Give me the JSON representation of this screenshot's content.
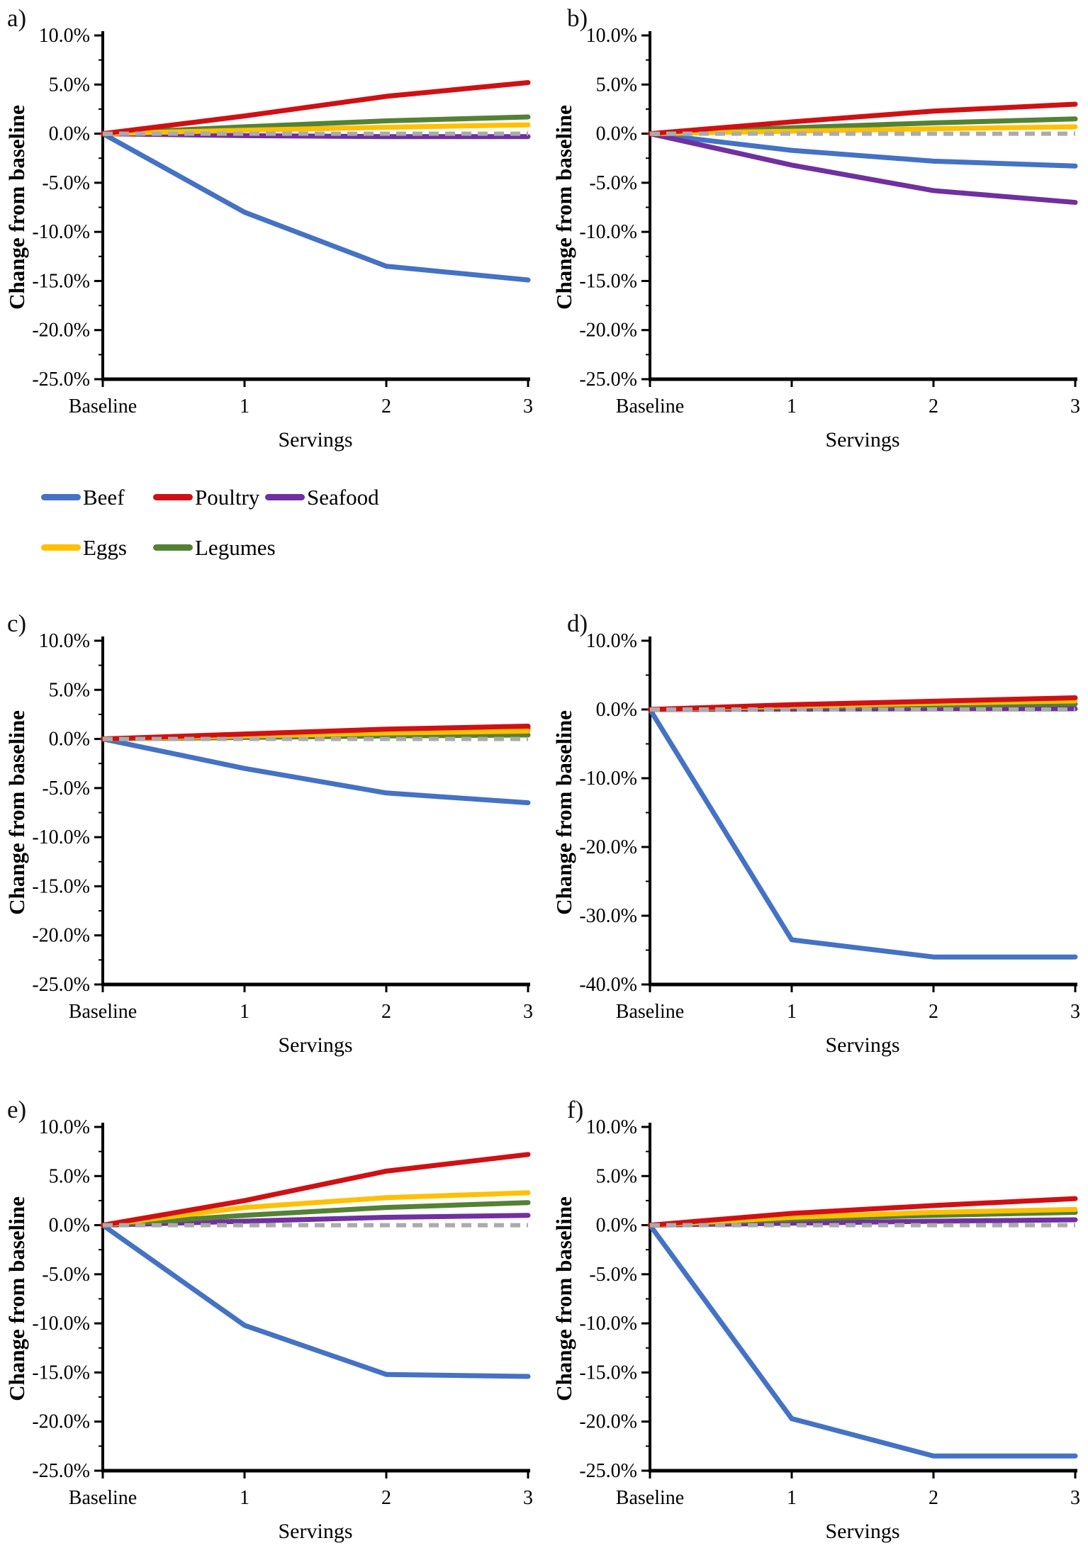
{
  "figure": {
    "description": "Six line-chart panels labeled a) to f) showing percent change from baseline by number of servings",
    "panel_letters": [
      "a)",
      "b)",
      "c)",
      "d)",
      "e)",
      "f)"
    ]
  },
  "palette": {
    "beef": "#4472C4",
    "poultry": "#D01013",
    "seafood": "#7030A0",
    "eggs": "#FFC000",
    "legumes": "#548235",
    "zero_line": "#ABABAB",
    "axis": "#000000"
  },
  "legend": {
    "rows": [
      [
        {
          "label": "Beef",
          "color": "#4472C4"
        },
        {
          "label": "Poultry",
          "color": "#D01013"
        },
        {
          "label": "Seafood",
          "color": "#7030A0"
        }
      ],
      [
        {
          "label": "Eggs",
          "color": "#FFC000"
        },
        {
          "label": "Legumes",
          "color": "#548235"
        }
      ]
    ]
  },
  "chart_data": [
    {
      "id": "a",
      "panel_label": "a)",
      "type": "line",
      "x_categories": [
        "Baseline",
        "1",
        "2",
        "3"
      ],
      "xlabel": "Servings",
      "ylabel": "Change from baseline",
      "ylim": [
        -25,
        10
      ],
      "ytick_minor_step": 2.5,
      "grid": false,
      "legend_position": "below-left",
      "yticks": [
        {
          "value": 10,
          "label": "10.0%"
        },
        {
          "value": 5,
          "label": "5.0%"
        },
        {
          "value": 0,
          "label": "0.0%"
        },
        {
          "value": -5,
          "label": "-5.0%"
        },
        {
          "value": -10,
          "label": "-10.0%"
        },
        {
          "value": -15,
          "label": "-15.0%"
        },
        {
          "value": -20,
          "label": "-20.0%"
        },
        {
          "value": -25,
          "label": "-25.0%"
        }
      ],
      "series": [
        {
          "name": "Beef",
          "color": "#4472C4",
          "values": [
            0,
            -8.0,
            -13.5,
            -14.9
          ]
        },
        {
          "name": "Seafood",
          "color": "#7030A0",
          "values": [
            0,
            -0.2,
            -0.3,
            -0.3
          ]
        },
        {
          "name": "Legumes",
          "color": "#548235",
          "values": [
            0,
            0.7,
            1.3,
            1.7
          ]
        },
        {
          "name": "Eggs",
          "color": "#FFC000",
          "values": [
            0,
            0.35,
            0.65,
            0.9
          ]
        },
        {
          "name": "Poultry",
          "color": "#D01013",
          "values": [
            0,
            1.8,
            3.8,
            5.2
          ]
        }
      ],
      "zero_line": {
        "value": 0,
        "color": "#ABABAB",
        "style": "dashed"
      }
    },
    {
      "id": "b",
      "panel_label": "b)",
      "type": "line",
      "x_categories": [
        "Baseline",
        "1",
        "2",
        "3"
      ],
      "xlabel": "Servings",
      "ylabel": "Change from baseline",
      "ylim": [
        -25,
        10
      ],
      "ytick_minor_step": 2.5,
      "grid": false,
      "yticks": [
        {
          "value": 10,
          "label": "10.0%"
        },
        {
          "value": 5,
          "label": "5.0%"
        },
        {
          "value": 0,
          "label": "0.0%"
        },
        {
          "value": -5,
          "label": "-5.0%"
        },
        {
          "value": -10,
          "label": "-10.0%"
        },
        {
          "value": -15,
          "label": "-15.0%"
        },
        {
          "value": -20,
          "label": "-20.0%"
        },
        {
          "value": -25,
          "label": "-25.0%"
        }
      ],
      "series": [
        {
          "name": "Beef",
          "color": "#4472C4",
          "values": [
            0,
            -1.7,
            -2.8,
            -3.3
          ]
        },
        {
          "name": "Seafood",
          "color": "#7030A0",
          "values": [
            0,
            -3.2,
            -5.8,
            -7.0
          ]
        },
        {
          "name": "Legumes",
          "color": "#548235",
          "values": [
            0,
            0.6,
            1.1,
            1.5
          ]
        },
        {
          "name": "Eggs",
          "color": "#FFC000",
          "values": [
            0,
            0.25,
            0.5,
            0.7
          ]
        },
        {
          "name": "Poultry",
          "color": "#D01013",
          "values": [
            0,
            1.2,
            2.3,
            3.0
          ]
        }
      ],
      "zero_line": {
        "value": 0,
        "color": "#ABABAB",
        "style": "dashed"
      }
    },
    {
      "id": "c",
      "panel_label": "c)",
      "type": "line",
      "x_categories": [
        "Baseline",
        "1",
        "2",
        "3"
      ],
      "xlabel": "Servings",
      "ylabel": "Change from baseline",
      "ylim": [
        -25,
        10
      ],
      "ytick_minor_step": 2.5,
      "grid": false,
      "yticks": [
        {
          "value": 10,
          "label": "10.0%"
        },
        {
          "value": 5,
          "label": "5.0%"
        },
        {
          "value": 0,
          "label": "0.0%"
        },
        {
          "value": -5,
          "label": "-5.0%"
        },
        {
          "value": -10,
          "label": "-10.0%"
        },
        {
          "value": -15,
          "label": "-15.0%"
        },
        {
          "value": -20,
          "label": "-20.0%"
        },
        {
          "value": -25,
          "label": "-25.0%"
        }
      ],
      "series": [
        {
          "name": "Beef",
          "color": "#4472C4",
          "values": [
            0,
            -3.0,
            -5.5,
            -6.5
          ]
        },
        {
          "name": "Seafood",
          "color": "#7030A0",
          "values": [
            0,
            0.4,
            0.8,
            1.1
          ]
        },
        {
          "name": "Legumes",
          "color": "#548235",
          "values": [
            0,
            0.15,
            0.3,
            0.4
          ]
        },
        {
          "name": "Eggs",
          "color": "#FFC000",
          "values": [
            0,
            0.3,
            0.6,
            0.8
          ]
        },
        {
          "name": "Poultry",
          "color": "#D01013",
          "values": [
            0,
            0.5,
            1.0,
            1.3
          ]
        }
      ],
      "zero_line": {
        "value": 0,
        "color": "#ABABAB",
        "style": "dashed"
      }
    },
    {
      "id": "d",
      "panel_label": "d)",
      "type": "line",
      "x_categories": [
        "Baseline",
        "1",
        "2",
        "3"
      ],
      "xlabel": "Servings",
      "ylabel": "Change from baseline",
      "ylim": [
        -40,
        10
      ],
      "ytick_minor_step": 5,
      "grid": false,
      "yticks": [
        {
          "value": 10,
          "label": "10.0%"
        },
        {
          "value": 0,
          "label": "0.0%"
        },
        {
          "value": -10,
          "label": "-10.0%"
        },
        {
          "value": -20,
          "label": "-20.0%"
        },
        {
          "value": -30,
          "label": "-30.0%"
        },
        {
          "value": -40,
          "label": "-40.0%"
        }
      ],
      "series": [
        {
          "name": "Beef",
          "color": "#4472C4",
          "values": [
            0,
            -33.5,
            -36.0,
            -36.0
          ]
        },
        {
          "name": "Seafood",
          "color": "#7030A0",
          "values": [
            0,
            0.05,
            0.1,
            0.1
          ]
        },
        {
          "name": "Legumes",
          "color": "#548235",
          "values": [
            0,
            0.35,
            0.6,
            0.8
          ]
        },
        {
          "name": "Eggs",
          "color": "#FFC000",
          "values": [
            0,
            0.5,
            0.9,
            1.25
          ]
        },
        {
          "name": "Poultry",
          "color": "#D01013",
          "values": [
            0,
            0.7,
            1.2,
            1.7
          ]
        }
      ],
      "zero_line": {
        "value": 0,
        "color": "#ABABAB",
        "style": "dashed"
      }
    },
    {
      "id": "e",
      "panel_label": "e)",
      "type": "line",
      "x_categories": [
        "Baseline",
        "1",
        "2",
        "3"
      ],
      "xlabel": "Servings",
      "ylabel": "Change from baseline",
      "ylim": [
        -25,
        10
      ],
      "ytick_minor_step": 2.5,
      "grid": false,
      "yticks": [
        {
          "value": 10,
          "label": "10.0%"
        },
        {
          "value": 5,
          "label": "5.0%"
        },
        {
          "value": 0,
          "label": "0.0%"
        },
        {
          "value": -5,
          "label": "-5.0%"
        },
        {
          "value": -10,
          "label": "-10.0%"
        },
        {
          "value": -15,
          "label": "-15.0%"
        },
        {
          "value": -20,
          "label": "-20.0%"
        },
        {
          "value": -25,
          "label": "-25.0%"
        }
      ],
      "series": [
        {
          "name": "Beef",
          "color": "#4472C4",
          "values": [
            0,
            -10.2,
            -15.2,
            -15.4
          ]
        },
        {
          "name": "Seafood",
          "color": "#7030A0",
          "values": [
            0,
            0.4,
            0.8,
            1.0
          ]
        },
        {
          "name": "Legumes",
          "color": "#548235",
          "values": [
            0,
            1.0,
            1.8,
            2.3
          ]
        },
        {
          "name": "Eggs",
          "color": "#FFC000",
          "values": [
            0,
            1.8,
            2.8,
            3.3
          ]
        },
        {
          "name": "Poultry",
          "color": "#D01013",
          "values": [
            0,
            2.5,
            5.5,
            7.2
          ]
        }
      ],
      "zero_line": {
        "value": 0,
        "color": "#ABABAB",
        "style": "dashed"
      }
    },
    {
      "id": "f",
      "panel_label": "f)",
      "type": "line",
      "x_categories": [
        "Baseline",
        "1",
        "2",
        "3"
      ],
      "xlabel": "Servings",
      "ylabel": "Change from baseline",
      "ylim": [
        -25,
        10
      ],
      "ytick_minor_step": 2.5,
      "grid": false,
      "yticks": [
        {
          "value": 10,
          "label": "10.0%"
        },
        {
          "value": 5,
          "label": "5.0%"
        },
        {
          "value": 0,
          "label": "0.0%"
        },
        {
          "value": -5,
          "label": "-5.0%"
        },
        {
          "value": -10,
          "label": "-10.0%"
        },
        {
          "value": -15,
          "label": "-15.0%"
        },
        {
          "value": -20,
          "label": "-20.0%"
        },
        {
          "value": -25,
          "label": "-25.0%"
        }
      ],
      "series": [
        {
          "name": "Beef",
          "color": "#4472C4",
          "values": [
            0,
            -19.7,
            -23.5,
            -23.5
          ]
        },
        {
          "name": "Seafood",
          "color": "#7030A0",
          "values": [
            0,
            0.2,
            0.4,
            0.55
          ]
        },
        {
          "name": "Legumes",
          "color": "#548235",
          "values": [
            0,
            0.6,
            1.0,
            1.3
          ]
        },
        {
          "name": "Eggs",
          "color": "#FFC000",
          "values": [
            0,
            0.8,
            1.3,
            1.6
          ]
        },
        {
          "name": "Poultry",
          "color": "#D01013",
          "values": [
            0,
            1.2,
            2.0,
            2.7
          ]
        }
      ],
      "zero_line": {
        "value": 0,
        "color": "#ABABAB",
        "style": "dashed"
      }
    }
  ]
}
